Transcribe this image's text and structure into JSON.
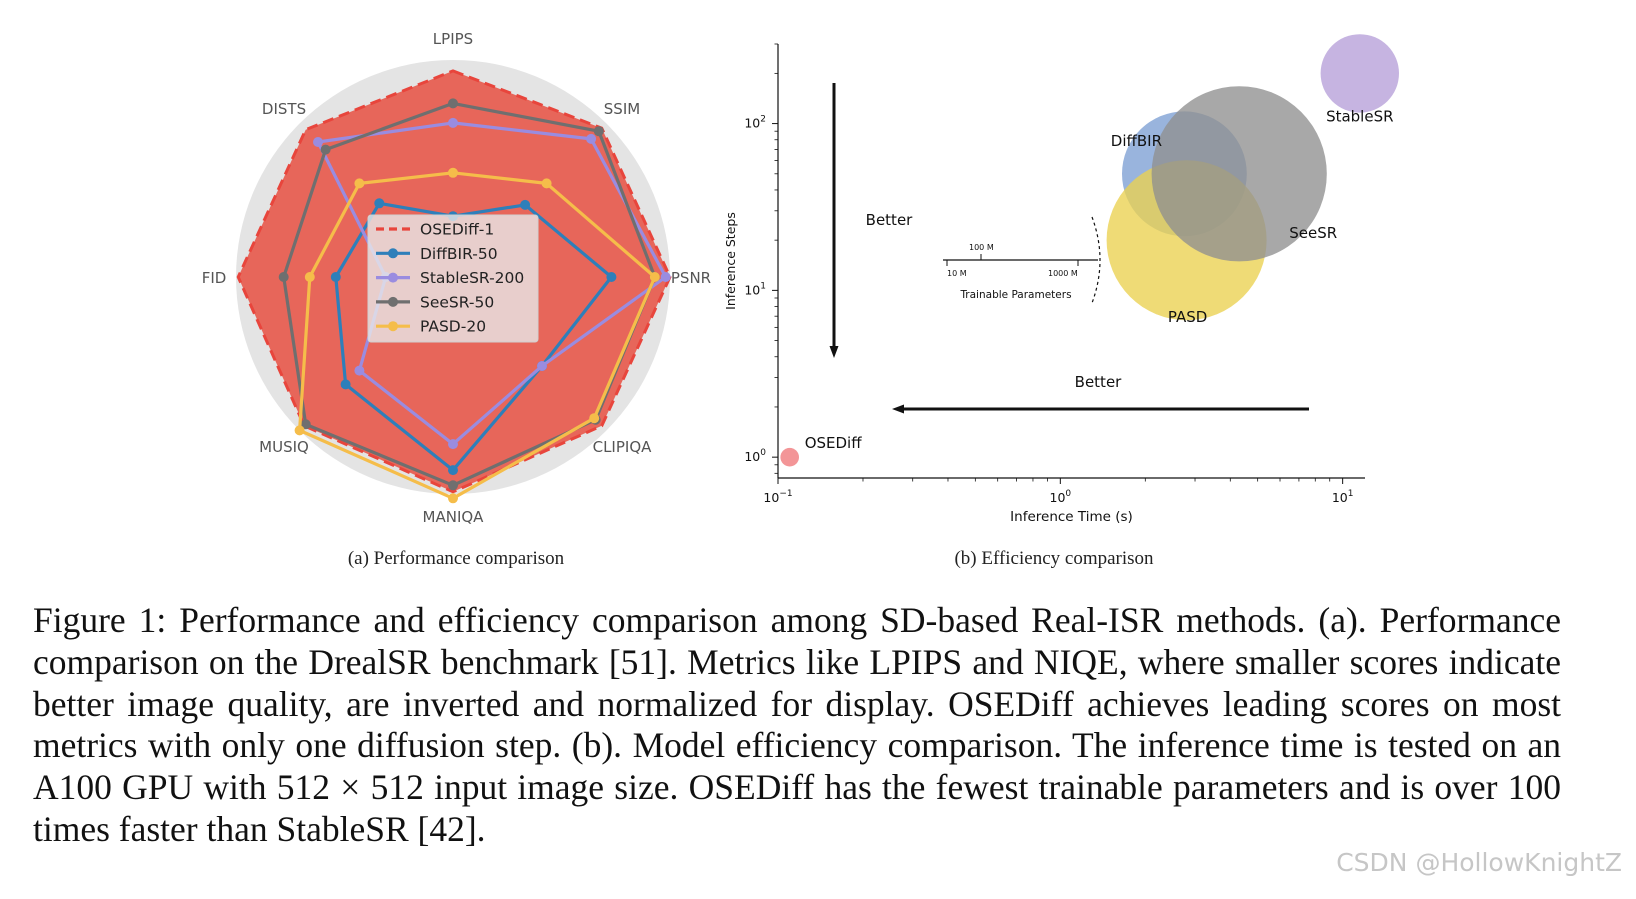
{
  "chart_data": [
    {
      "type": "radar",
      "axes": [
        "LPIPS",
        "SSIM",
        "PSNR",
        "CLIPIQA",
        "MANIQA",
        "MUSIQ",
        "FID",
        "DISTS"
      ],
      "series": [
        {
          "name": "OSEDiff-1",
          "color": "#e8453c",
          "dashed": true,
          "filled": true,
          "values": [
            0.95,
            0.97,
            1.0,
            0.97,
            0.99,
            0.97,
            0.99,
            0.96
          ]
        },
        {
          "name": "DiffBIR-50",
          "color": "#2e7fba",
          "dashed": false,
          "filled": false,
          "values": [
            0.28,
            0.47,
            0.73,
            0.58,
            0.89,
            0.7,
            0.54,
            0.48
          ]
        },
        {
          "name": "StableSR-200",
          "color": "#9a8ce0",
          "dashed": false,
          "filled": false,
          "values": [
            0.71,
            0.9,
            0.98,
            0.58,
            0.77,
            0.61,
            0.31,
            0.88
          ]
        },
        {
          "name": "SeeSR-50",
          "color": "#6f6f6f",
          "dashed": false,
          "filled": false,
          "values": [
            0.8,
            0.95,
            0.93,
            0.93,
            0.96,
            0.96,
            0.78,
            0.83
          ]
        },
        {
          "name": "PASD-20",
          "color": "#f5bd4a",
          "dashed": false,
          "filled": false,
          "values": [
            0.48,
            0.61,
            0.93,
            0.92,
            1.02,
            1.0,
            0.66,
            0.61
          ]
        }
      ],
      "subcaption": "(a) Performance comparison"
    },
    {
      "type": "scatter",
      "xscale": "log",
      "yscale": "log",
      "xlabel": "Inference Time (s)",
      "ylabel": "Inference Steps",
      "xlim": [
        0.1,
        12
      ],
      "ylim": [
        0.75,
        300
      ],
      "xticks": [
        {
          "value": 0.1,
          "base": "10",
          "exp": "−1"
        },
        {
          "value": 1,
          "base": "10",
          "exp": "0"
        },
        {
          "value": 10,
          "base": "10",
          "exp": "1"
        }
      ],
      "yticks": [
        {
          "value": 1,
          "base": "10",
          "exp": "0"
        },
        {
          "value": 10,
          "base": "10",
          "exp": "1"
        },
        {
          "value": 100,
          "base": "10",
          "exp": "2"
        }
      ],
      "points": [
        {
          "name": "StableSR",
          "x": 11.5,
          "y": 200,
          "params_m": 150,
          "color": "#b69fd8"
        },
        {
          "name": "DiffBIR",
          "x": 2.75,
          "y": 50,
          "params_m": 380,
          "color": "#7c9fd4"
        },
        {
          "name": "SeeSR",
          "x": 4.3,
          "y": 50,
          "params_m": 750,
          "color": "#8f8f8f"
        },
        {
          "name": "PASD",
          "x": 2.8,
          "y": 20,
          "params_m": 625,
          "color": "#ead14f"
        },
        {
          "name": "OSEDiff",
          "x": 0.11,
          "y": 1,
          "params_m": 8.5,
          "color": "#f0777a"
        }
      ],
      "annotations": {
        "better_vertical": "Better",
        "better_horizontal": "Better"
      },
      "size_legend": {
        "title": "Trainable Parameters",
        "ticks": [
          "10 M",
          "100 M",
          "1000 M"
        ]
      },
      "subcaption": "(b) Efficiency comparison"
    }
  ],
  "caption": {
    "text": "Figure 1: Performance and efficiency comparison among SD-based Real-ISR methods. (a). Performance comparison on the DrealSR benchmark [51]. Metrics like LPIPS and NIQE, where smaller scores indicate better image quality, are inverted and normalized for display.  OSEDiff achieves leading scores on most metrics with only one diffusion step. (b). Model efficiency comparison. The inference time is tested on an A100 GPU with 512 × 512 input image size. OSEDiff has the fewest trainable parameters and is over 100 times faster than StableSR [42]."
  },
  "watermark": "CSDN @HollowKnightZ"
}
